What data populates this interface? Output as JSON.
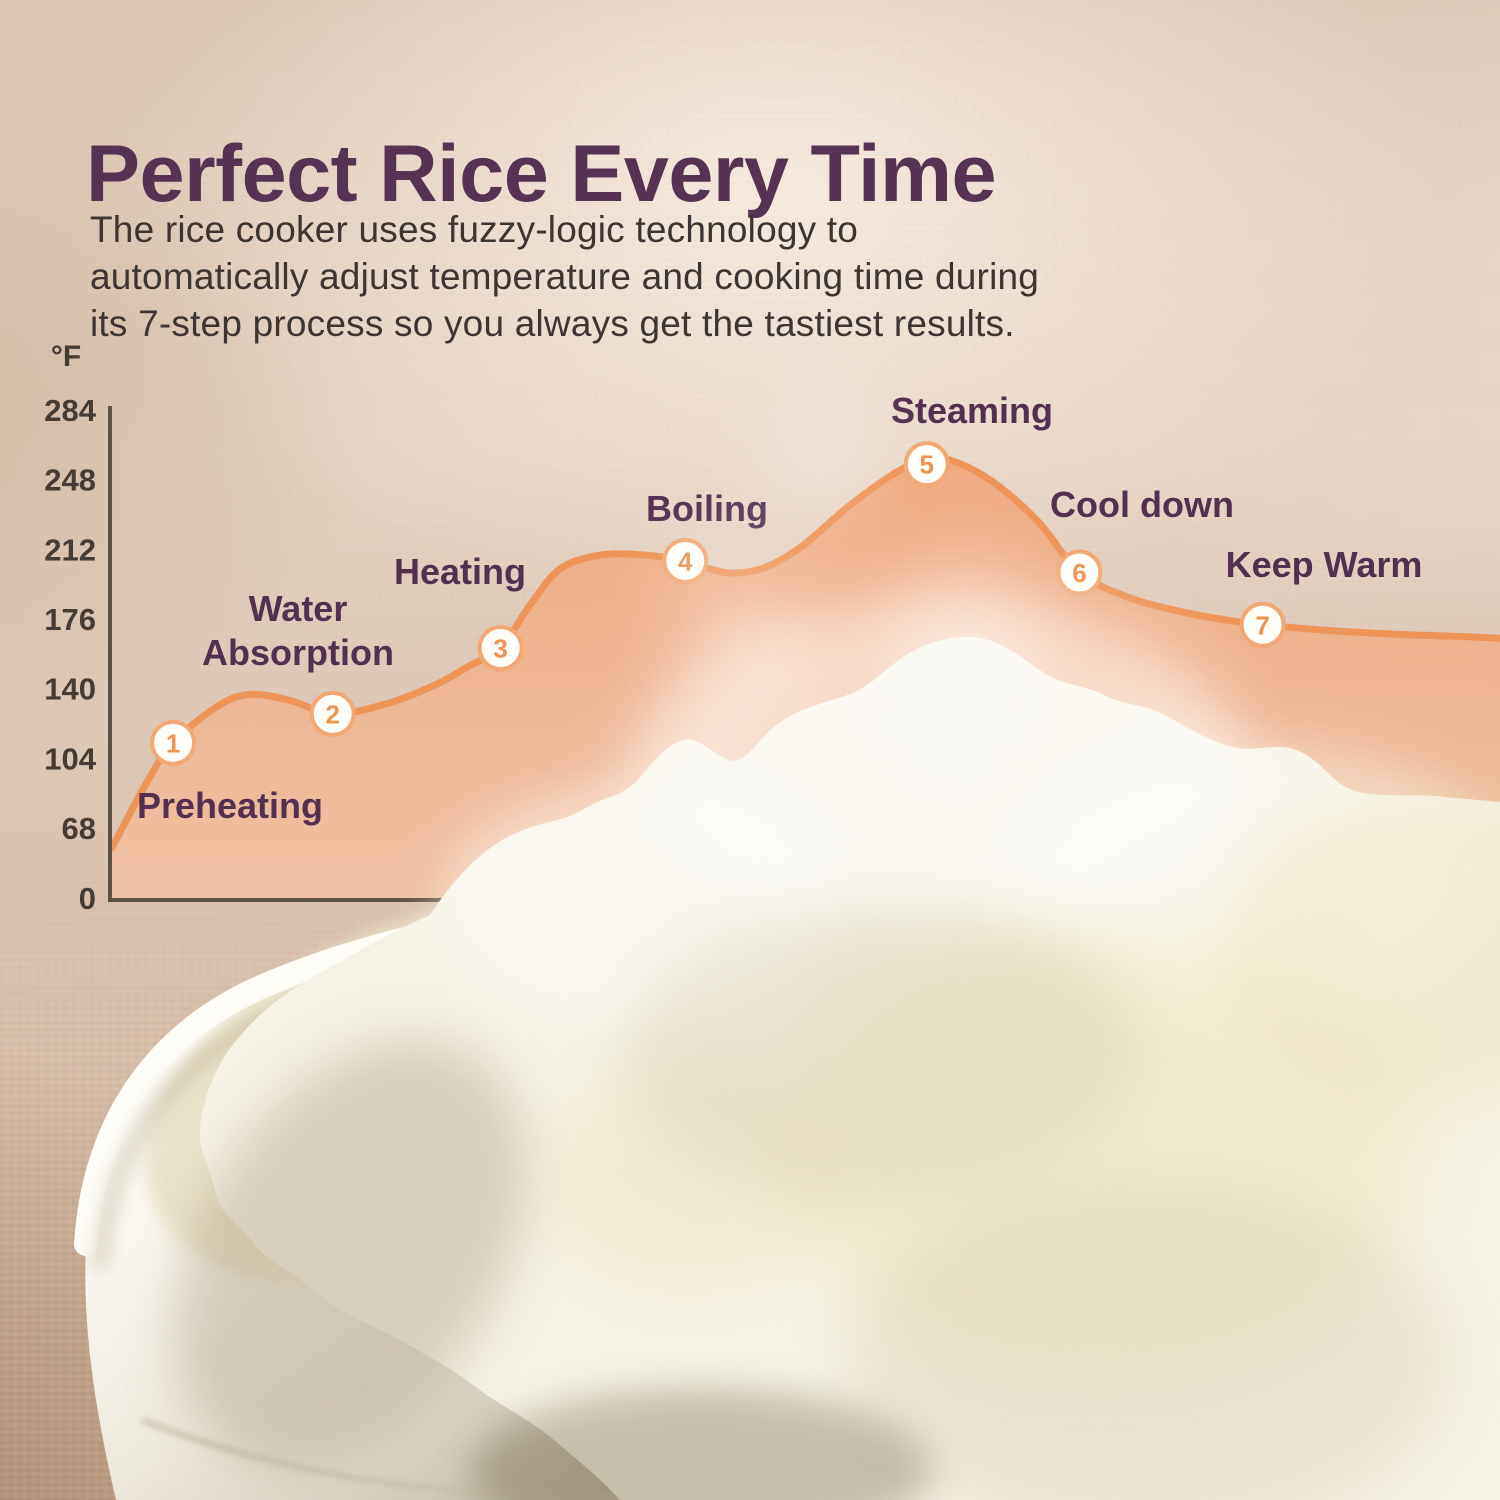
{
  "header": {
    "title": "Perfect Rice Every Time",
    "description_lines": [
      "The rice cooker uses fuzzy-logic technology to",
      "automatically adjust temperature and cooking time during",
      "its 7-step process so you always get the tastiest results."
    ]
  },
  "chart_data": {
    "type": "area",
    "title": "",
    "xlabel": "",
    "ylabel": "°F",
    "yticks": [
      284,
      248,
      212,
      176,
      140,
      104,
      68,
      0
    ],
    "ylim": [
      0,
      284
    ],
    "grid": false,
    "legend": "none",
    "steps": [
      {
        "n": "1",
        "label": "Preheating",
        "x": 0.044,
        "temp_f": 112
      },
      {
        "n": "2",
        "label": "Water Absorption",
        "x": 0.159,
        "temp_f": 127
      },
      {
        "n": "3",
        "label": "Heating",
        "x": 0.28,
        "temp_f": 161
      },
      {
        "n": "4",
        "label": "Boiling",
        "x": 0.413,
        "temp_f": 206
      },
      {
        "n": "5",
        "label": "Steaming",
        "x": 0.587,
        "temp_f": 256
      },
      {
        "n": "6",
        "label": "Cool down",
        "x": 0.697,
        "temp_f": 200
      },
      {
        "n": "7",
        "label": "Keep Warm",
        "x": 0.829,
        "temp_f": 173
      }
    ],
    "curve": [
      [
        0.0,
        49
      ],
      [
        0.027,
        94
      ],
      [
        0.044,
        112
      ],
      [
        0.074,
        130
      ],
      [
        0.098,
        137
      ],
      [
        0.128,
        134
      ],
      [
        0.159,
        127
      ],
      [
        0.197,
        132
      ],
      [
        0.233,
        142
      ],
      [
        0.258,
        152
      ],
      [
        0.28,
        161
      ],
      [
        0.301,
        183
      ],
      [
        0.323,
        202
      ],
      [
        0.352,
        209
      ],
      [
        0.384,
        209
      ],
      [
        0.413,
        206
      ],
      [
        0.442,
        200
      ],
      [
        0.468,
        202
      ],
      [
        0.496,
        213
      ],
      [
        0.532,
        235
      ],
      [
        0.568,
        253
      ],
      [
        0.593,
        259
      ],
      [
        0.615,
        255
      ],
      [
        0.64,
        244
      ],
      [
        0.669,
        225
      ],
      [
        0.697,
        200
      ],
      [
        0.733,
        187
      ],
      [
        0.769,
        180
      ],
      [
        0.798,
        176
      ],
      [
        0.829,
        173
      ],
      [
        0.878,
        170
      ],
      [
        0.928,
        168
      ],
      [
        0.971,
        167
      ],
      [
        1.0,
        166
      ]
    ]
  },
  "colors": {
    "accent_orange": "#EF9457",
    "area_fill_top": "#F1A070",
    "area_fill_bottom": "#F5C09E",
    "marker_ring": "#F3A873",
    "marker_number": "#EC9350",
    "title_plum": "#563353",
    "step_label_plum": "#53304F",
    "body_text": "#3C3533",
    "axis_text": "#453C35",
    "axis_line": "#5D5044"
  }
}
